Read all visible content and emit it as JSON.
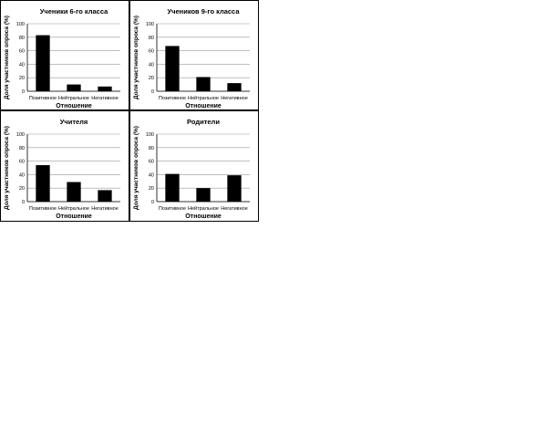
{
  "chart_data": [
    {
      "type": "bar",
      "title": "Ученики 6-го класса",
      "categories": [
        "Позитивное",
        "Нейтральное",
        "Негативное"
      ],
      "values": [
        83,
        10,
        7
      ],
      "xlabel": "Отношение",
      "ylabel": "Доля участников опроса (%)",
      "ylim": [
        0,
        100
      ],
      "yticks": [
        0,
        20,
        40,
        60,
        80,
        100
      ],
      "grid": true,
      "bar_color": "#000000"
    },
    {
      "type": "bar",
      "title": "Учеников 9-го класса",
      "categories": [
        "Позитивное",
        "Нейтральное",
        "Негативное"
      ],
      "values": [
        67,
        21,
        12
      ],
      "xlabel": "Отношение",
      "ylabel": "Доля участников опроса (%)",
      "ylim": [
        0,
        100
      ],
      "yticks": [
        0,
        20,
        40,
        60,
        80,
        100
      ],
      "grid": true,
      "bar_color": "#000000"
    },
    {
      "type": "bar",
      "title": "Учителя",
      "categories": [
        "Позитивное",
        "Нейтральное",
        "Негативное"
      ],
      "values": [
        54,
        29,
        17
      ],
      "xlabel": "Отношение",
      "ylabel": "Доля участников опроса (%)",
      "ylim": [
        0,
        100
      ],
      "yticks": [
        0,
        20,
        40,
        60,
        80,
        100
      ],
      "grid": true,
      "bar_color": "#000000"
    },
    {
      "type": "bar",
      "title": "Родители",
      "categories": [
        "Позитивное",
        "Нейтральное",
        "Негативное"
      ],
      "values": [
        41,
        20,
        39
      ],
      "xlabel": "Отношение",
      "ylabel": "Доля участников опроса (%)",
      "ylim": [
        0,
        100
      ],
      "yticks": [
        0,
        20,
        40,
        60,
        80,
        100
      ],
      "grid": true,
      "bar_color": "#000000"
    }
  ]
}
